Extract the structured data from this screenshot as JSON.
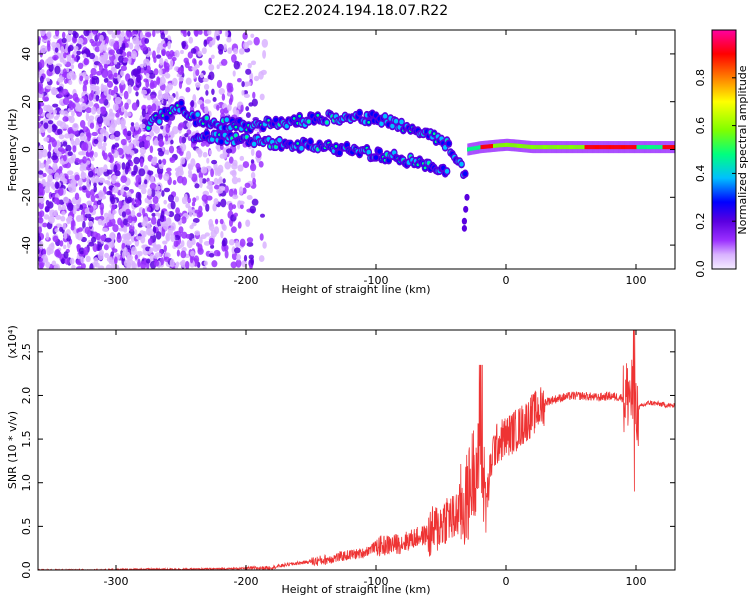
{
  "title": "C2E2.2024.194.18.07.R22",
  "chart_data": [
    {
      "type": "heatmap",
      "title": "C2E2.2024.194.18.07.R22",
      "xlabel": "Height of straight line (km)",
      "ylabel": "Frequency (Hz)",
      "xlim": [
        -360,
        130
      ],
      "ylim": [
        -50,
        50
      ],
      "xticks": [
        -300,
        -200,
        -100,
        0,
        100
      ],
      "xtick_labels": [
        "-300",
        "-200",
        "-100",
        "0",
        "100"
      ],
      "yticks": [
        -40,
        -20,
        0,
        20,
        40
      ],
      "ytick_labels": [
        "-40",
        "-20",
        "0",
        "20",
        "40"
      ],
      "colorbar": {
        "label": "Normalized spectral amplitude",
        "range": [
          0,
          1
        ],
        "ticks": [
          0.0,
          0.2,
          0.4,
          0.6,
          0.8
        ],
        "tick_labels": [
          "0.0",
          "0.2",
          "0.4",
          "0.6",
          "0.8"
        ],
        "colormap": [
          "#f4ecff",
          "#d9b3ff",
          "#9b30ff",
          "#5a00e0",
          "#0000ff",
          "#00bfff",
          "#00ff7f",
          "#7fff00",
          "#ffff00",
          "#ff8000",
          "#ff0000",
          "#ff00a0"
        ]
      },
      "ridges": [
        {
          "x": [
            -275,
            -260,
            -250,
            -240,
            -220,
            -200,
            -180,
            -160,
            -140,
            -120,
            -100,
            -80,
            -60,
            -45,
            -38,
            -30
          ],
          "y": [
            11,
            15,
            18,
            13,
            11,
            10,
            11,
            12,
            13,
            14,
            13,
            10,
            6,
            2,
            -4,
            -12
          ]
        },
        {
          "x": [
            -240,
            -220,
            -200,
            -180,
            -160,
            -140,
            -120,
            -100,
            -80,
            -60,
            -45
          ],
          "y": [
            6,
            5,
            4,
            3,
            2,
            1,
            0,
            -2,
            -4,
            -7,
            -10
          ]
        },
        {
          "x": [
            -30,
            -20,
            0,
            20,
            40,
            60,
            80,
            100,
            120,
            130
          ],
          "y": [
            0,
            1,
            2,
            1,
            1,
            1,
            1,
            1,
            1,
            1
          ]
        }
      ]
    },
    {
      "type": "line",
      "xlabel": "Height of straight line (km)",
      "ylabel": "SNR (10 * v/v)",
      "y_multiplier": "(x10⁴)",
      "xlim": [
        -360,
        130
      ],
      "ylim": [
        0,
        2.75
      ],
      "xticks": [
        -300,
        -200,
        -100,
        0,
        100
      ],
      "xtick_labels": [
        "-300",
        "-200",
        "-100",
        "0",
        "100"
      ],
      "yticks": [
        0.0,
        0.5,
        1.0,
        1.5,
        2.0,
        2.5
      ],
      "ytick_labels": [
        "0.0",
        "0.5",
        "1.0",
        "1.5",
        "2.0",
        "2.5"
      ],
      "color": "#ee3333",
      "series": [
        {
          "x": [
            -360,
            -320,
            -280,
            -240,
            -200,
            -180,
            -170,
            -160,
            -140,
            -120,
            -110,
            -100,
            -90,
            -80,
            -70,
            -60,
            -50,
            -45,
            -40,
            -35,
            -30,
            -25,
            -20,
            -15,
            -10,
            -5,
            0,
            10,
            20,
            30,
            40,
            50,
            60,
            70,
            80,
            90,
            95,
            100,
            110,
            120,
            130
          ],
          "y": [
            0.0,
            0.0,
            0.01,
            0.01,
            0.02,
            0.03,
            0.06,
            0.08,
            0.12,
            0.18,
            0.2,
            0.28,
            0.3,
            0.32,
            0.38,
            0.42,
            0.55,
            0.65,
            0.6,
            0.75,
            0.85,
            1.2,
            1.3,
            0.8,
            1.4,
            1.5,
            1.55,
            1.65,
            1.8,
            1.93,
            1.97,
            2.0,
            2.0,
            1.98,
            2.0,
            1.98,
            2.1,
            1.85,
            1.92,
            1.9,
            1.88
          ]
        }
      ]
    }
  ]
}
